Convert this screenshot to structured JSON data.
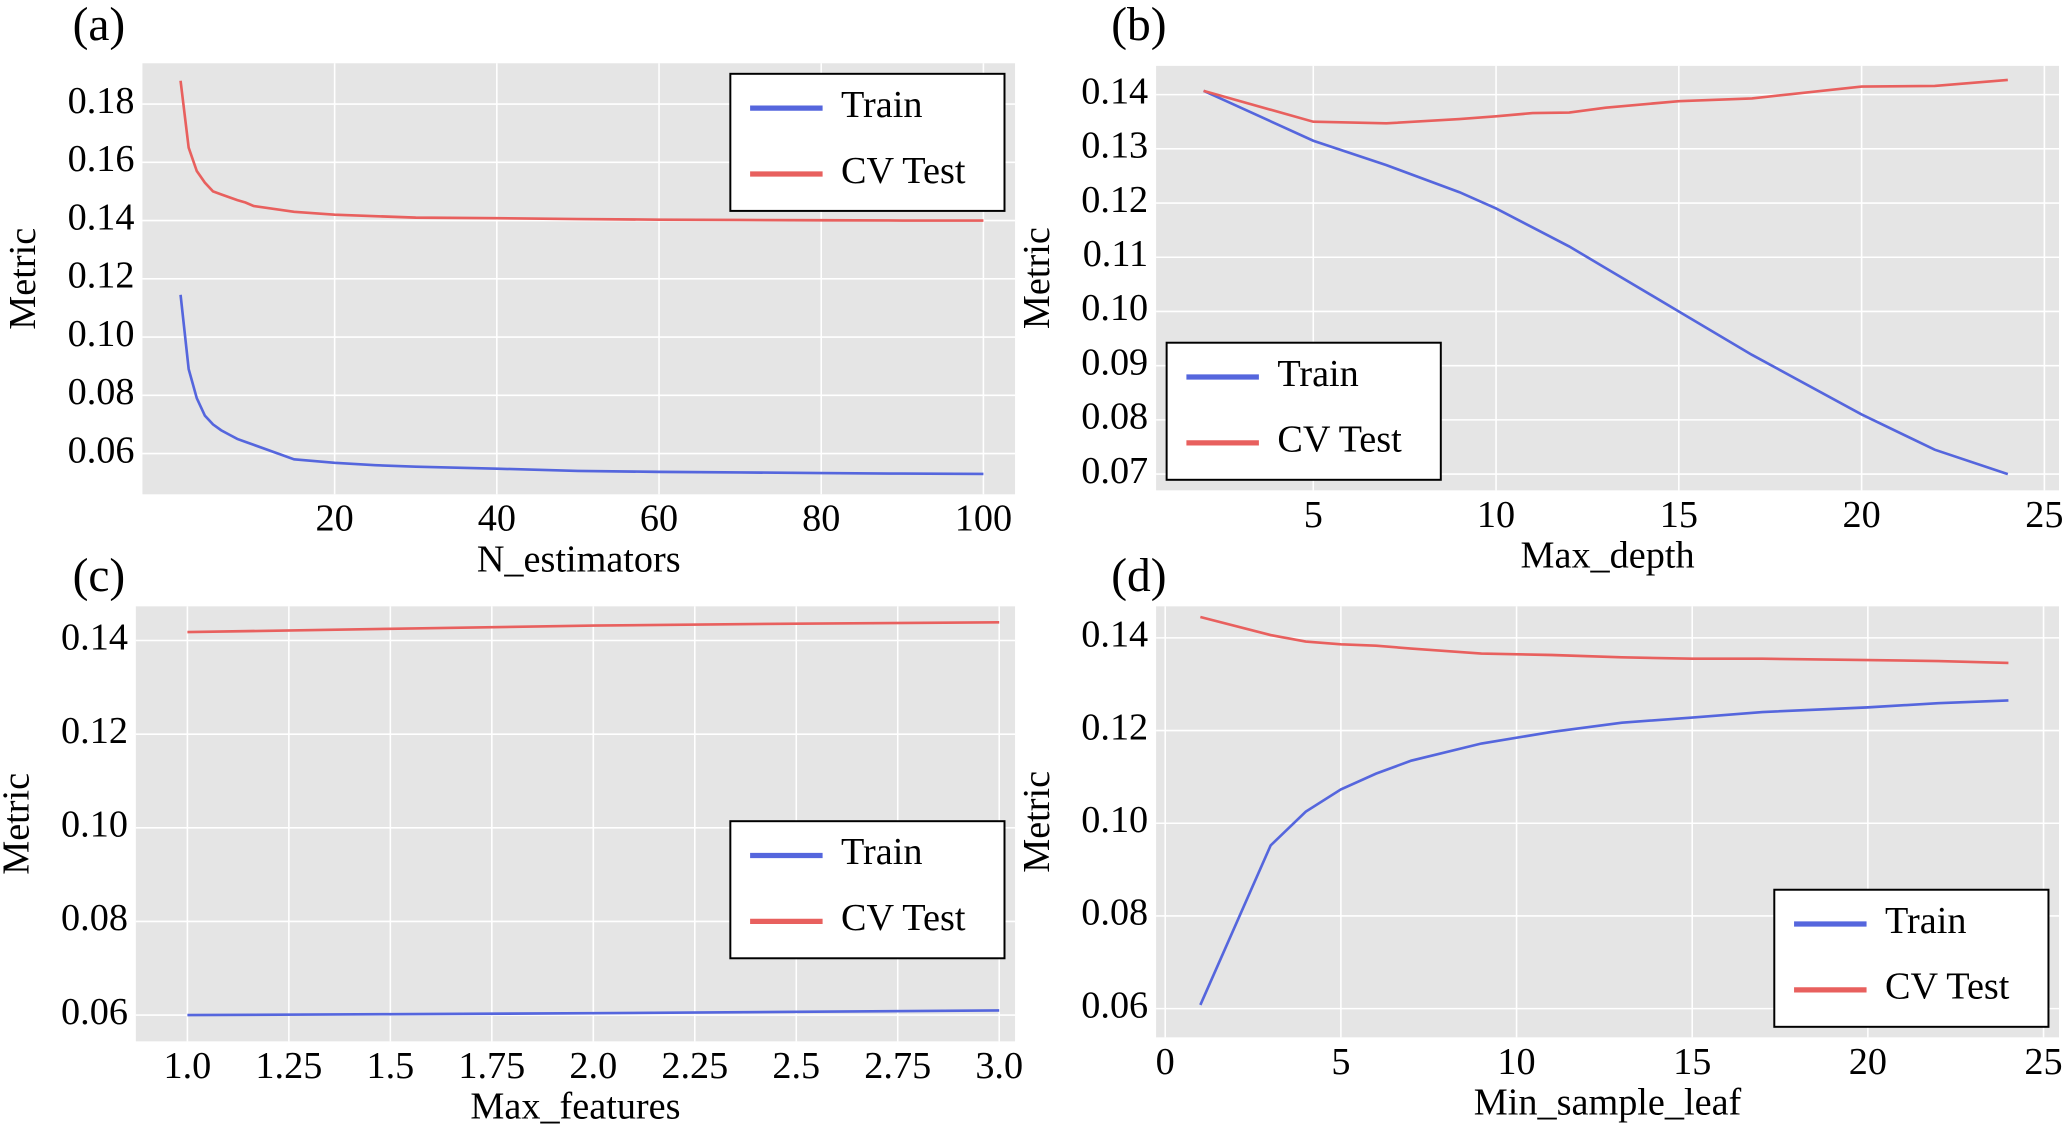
{
  "chart_data": [
    {
      "type": "line",
      "label": "(a)",
      "xlabel": "N_estimators",
      "ylabel": "Metric",
      "x": [
        1,
        2,
        3,
        4,
        5,
        6,
        7,
        8,
        9,
        10,
        15,
        20,
        25,
        30,
        40,
        50,
        60,
        70,
        80,
        90,
        100
      ],
      "series": [
        {
          "name": "Train",
          "color": "#5566dd",
          "values": [
            0.1145,
            0.089,
            0.079,
            0.073,
            0.07,
            0.068,
            0.0665,
            0.065,
            0.064,
            0.063,
            0.058,
            0.0568,
            0.056,
            0.0555,
            0.0548,
            0.054,
            0.0537,
            0.0535,
            0.0533,
            0.0531,
            0.053
          ]
        },
        {
          "name": "CV Test",
          "color": "#e8605e",
          "values": [
            0.188,
            0.165,
            0.157,
            0.153,
            0.15,
            0.149,
            0.148,
            0.147,
            0.1462,
            0.145,
            0.143,
            0.142,
            0.1415,
            0.141,
            0.1408,
            0.1405,
            0.1403,
            0.1402,
            0.1401,
            0.14,
            0.14
          ]
        }
      ],
      "xlim": [
        -3.7,
        103.9
      ],
      "ylim": [
        0.046,
        0.194
      ],
      "xticks": [
        20,
        40,
        60,
        80,
        100
      ],
      "yticks": [
        0.06,
        0.08,
        {
          "value": 0.1,
          "label": "0.10"
        },
        0.12,
        0.14,
        0.16,
        0.18
      ],
      "grid": true,
      "legend": "upper right"
    },
    {
      "type": "line",
      "label": "(b)",
      "xlabel": "Max_depth",
      "ylabel": "Metric",
      "x": [
        2,
        5,
        7,
        9,
        10,
        11,
        12,
        13,
        15,
        17,
        20,
        22,
        24
      ],
      "series": [
        {
          "name": "Train",
          "color": "#5566dd",
          "values": [
            0.1407,
            0.1315,
            0.127,
            0.122,
            0.119,
            0.1155,
            0.112,
            0.108,
            0.1,
            0.092,
            0.081,
            0.0745,
            0.07
          ]
        },
        {
          "name": "CV Test",
          "color": "#e8605e",
          "values": [
            0.1407,
            0.135,
            0.1347,
            0.1355,
            0.136,
            0.1366,
            0.1367,
            0.1376,
            0.1388,
            0.1393,
            0.1415,
            0.1416,
            0.1427
          ]
        }
      ],
      "xlim": [
        0.7,
        25.4
      ],
      "ylim": [
        0.067,
        0.1453
      ],
      "xticks": [
        5,
        10,
        15,
        20,
        25
      ],
      "yticks": [
        0.07,
        0.08,
        0.09,
        {
          "value": 0.1,
          "label": "0.10"
        },
        0.11,
        0.12,
        0.13,
        0.14
      ],
      "grid": true,
      "legend": "lower left"
    },
    {
      "type": "line",
      "label": "(c)",
      "xlabel": "Max_features",
      "ylabel": "Metric",
      "x": [
        1,
        1.5,
        2,
        2.5,
        3
      ],
      "series": [
        {
          "name": "Train",
          "color": "#5566dd",
          "values": [
            0.06,
            0.0602,
            0.0604,
            0.0607,
            0.061
          ]
        },
        {
          "name": "CV Test",
          "color": "#e8605e",
          "values": [
            0.1418,
            0.1425,
            0.1432,
            0.1436,
            0.1439
          ]
        }
      ],
      "xlim": [
        0.873,
        3.039
      ],
      "ylim": [
        0.0544,
        0.1473
      ],
      "xticks": [
        {
          "value": 1,
          "label": "1.0"
        },
        1.25,
        1.5,
        1.75,
        {
          "value": 2,
          "label": "2.0"
        },
        2.25,
        2.5,
        2.75,
        {
          "value": 3,
          "label": "3.0"
        }
      ],
      "yticks": [
        0.06,
        0.08,
        {
          "value": 0.1,
          "label": "0.10"
        },
        0.12,
        0.14
      ],
      "grid": true,
      "legend": "center right"
    },
    {
      "type": "line",
      "label": "(d)",
      "xlabel": "Min_sample_leaf",
      "ylabel": "Metric",
      "x": [
        1,
        3,
        4,
        5,
        6,
        7,
        9,
        11,
        13,
        15,
        17,
        20,
        22,
        24
      ],
      "series": [
        {
          "name": "Train",
          "color": "#5566dd",
          "values": [
            0.0608,
            0.0952,
            0.1025,
            0.1073,
            0.1107,
            0.1135,
            0.1172,
            0.1197,
            0.1217,
            0.1228,
            0.124,
            0.125,
            0.1259,
            0.1265
          ]
        },
        {
          "name": "CV Test",
          "color": "#e8605e",
          "values": [
            0.1445,
            0.1406,
            0.1392,
            0.1386,
            0.1383,
            0.1377,
            0.1366,
            0.1363,
            0.1358,
            0.1355,
            0.1355,
            0.1352,
            0.135,
            0.1346
          ]
        }
      ],
      "xlim": [
        -0.26,
        25.44
      ],
      "ylim": [
        0.0538,
        0.1468
      ],
      "xticks": [
        0,
        5,
        10,
        15,
        20,
        25
      ],
      "yticks": [
        0.06,
        0.08,
        {
          "value": 0.1,
          "label": "0.10"
        },
        0.12,
        0.14
      ],
      "grid": true,
      "legend": "lower right"
    }
  ]
}
